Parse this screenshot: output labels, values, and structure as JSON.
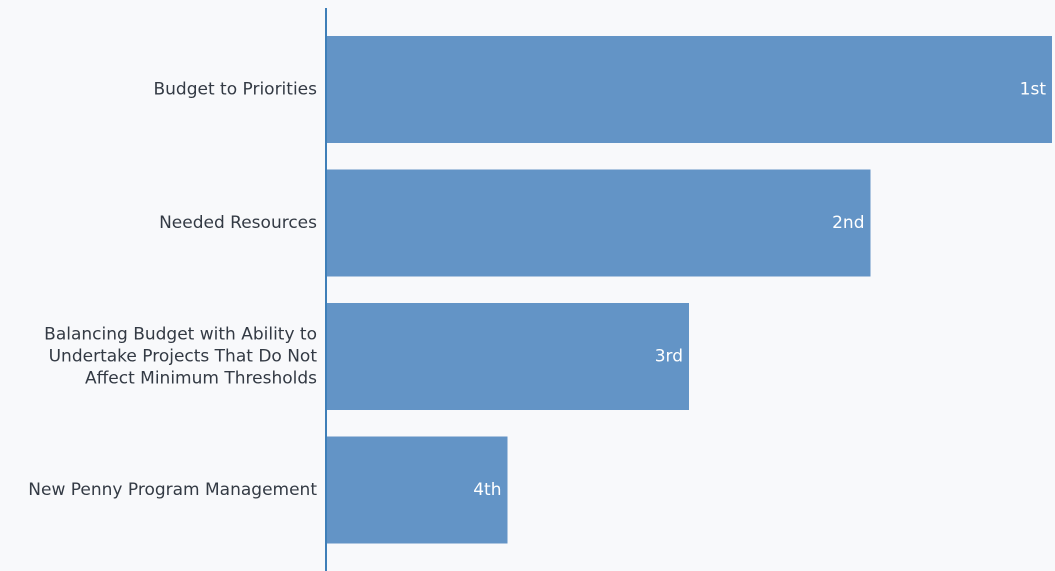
{
  "chart_data": {
    "type": "bar",
    "orientation": "horizontal",
    "categories": [
      [
        "Budget to Priorities"
      ],
      [
        "Needed Resources"
      ],
      [
        "Balancing Budget with Ability to",
        "Undertake Projects That Do Not",
        "Affect Minimum Thresholds"
      ],
      [
        "New Penny Program Management"
      ]
    ],
    "values": [
      4,
      3,
      2,
      1
    ],
    "data_labels": [
      "1st",
      "2nd",
      "3rd",
      "4th"
    ],
    "xlim": [
      0,
      4
    ],
    "title": "",
    "xlabel": "",
    "ylabel": "",
    "grid": false,
    "colors": {
      "bar": "#6394c6",
      "axis": "#3f7fb8",
      "text": "#333a44",
      "data_label": "#ffffff",
      "background": "#f8f9fb"
    }
  }
}
